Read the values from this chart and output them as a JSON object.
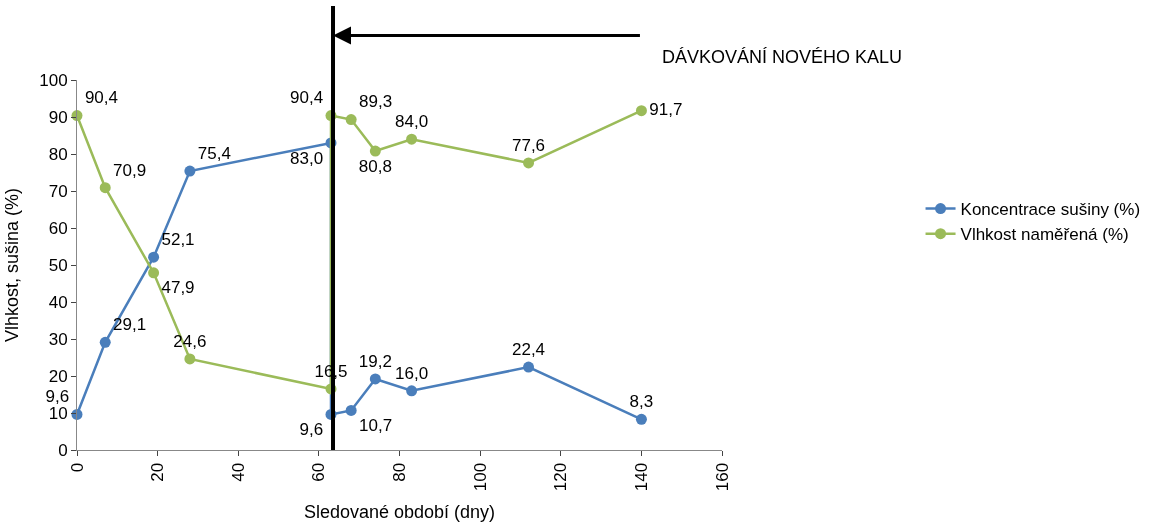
{
  "chart_data": {
    "type": "line",
    "xlabel": "Sledované období (dny)",
    "ylabel": "Vlhkost, sušina (%)",
    "xlim": [
      0,
      160
    ],
    "xticks": [
      0,
      20,
      40,
      60,
      80,
      100,
      120,
      140,
      160
    ],
    "ylim": [
      0,
      100
    ],
    "yticks": [
      0,
      10,
      20,
      30,
      40,
      50,
      60,
      70,
      80,
      90,
      100
    ],
    "x": [
      0,
      7,
      19,
      28,
      63,
      63,
      68,
      74,
      83,
      112,
      140
    ],
    "series": [
      {
        "name": "Koncentrace sušiny (%)",
        "color": "#4a7ebb",
        "values": [
          9.6,
          29.1,
          52.1,
          75.4,
          83.0,
          9.6,
          10.7,
          19.2,
          16.0,
          22.4,
          8.3
        ],
        "value_labels": [
          "9,6",
          "29,1",
          "52,1",
          "75,4",
          "83,0",
          "9,6",
          "10,7",
          "19,2",
          "16,0",
          "22,4",
          "8,3"
        ]
      },
      {
        "name": "Vlhkost naměřená (%)",
        "color": "#9bbb59",
        "values": [
          90.4,
          70.9,
          47.9,
          24.6,
          16.5,
          90.4,
          89.3,
          80.8,
          84.0,
          77.6,
          91.7
        ],
        "value_labels": [
          "90,4",
          "70,9",
          "47,9",
          "24,6",
          "16,5",
          "90,4",
          "89,3",
          "80,8",
          "84,0",
          "77,6",
          "91,7"
        ]
      }
    ],
    "ref_lines": [
      {
        "axis": "x",
        "value": 63.5,
        "color": "#000000"
      }
    ],
    "annotations": [
      "DÁVKOVÁNÍ NOVÉHO KALU"
    ],
    "legend": "right",
    "marker": "circle",
    "line_style": "solid"
  }
}
